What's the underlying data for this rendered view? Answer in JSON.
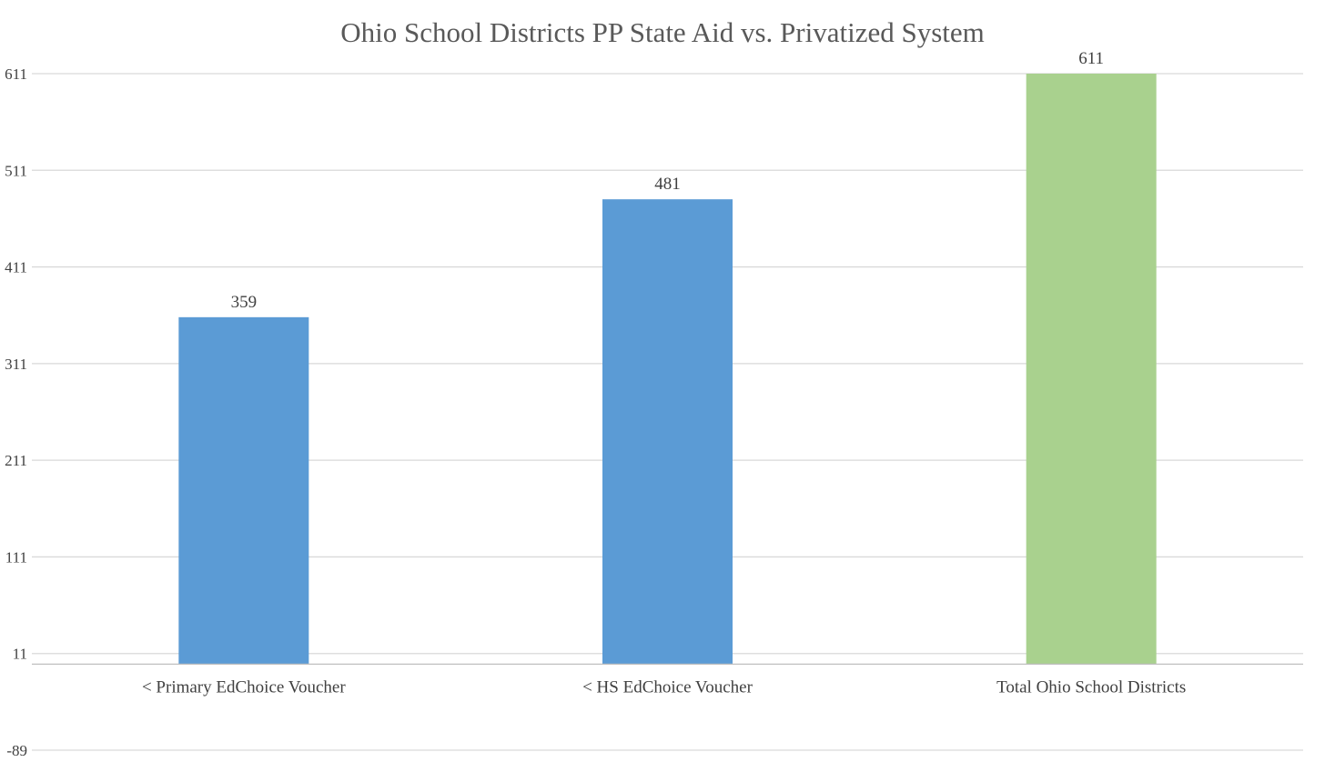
{
  "chart_data": {
    "type": "bar",
    "title": "Ohio School Districts PP State Aid vs. Privatized System",
    "categories": [
      "< Primary EdChoice Voucher",
      "< HS EdChoice Voucher",
      "Total Ohio School Districts"
    ],
    "series": [
      {
        "values": [
          359,
          481,
          611
        ],
        "colors": [
          "#5b9bd5",
          "#5b9bd5",
          "#a9d18e"
        ]
      }
    ],
    "data_labels": [
      "359",
      "481",
      "611"
    ],
    "yticks": [
      -89,
      11,
      111,
      211,
      311,
      411,
      511,
      611
    ],
    "ytick_labels": [
      "-89",
      "11",
      "111",
      "211",
      "311",
      "411",
      "511",
      "611"
    ],
    "ylim": [
      -89,
      611
    ],
    "bar_base": 0,
    "xlabel": "",
    "ylabel": "",
    "grid": true,
    "legend": "none"
  }
}
